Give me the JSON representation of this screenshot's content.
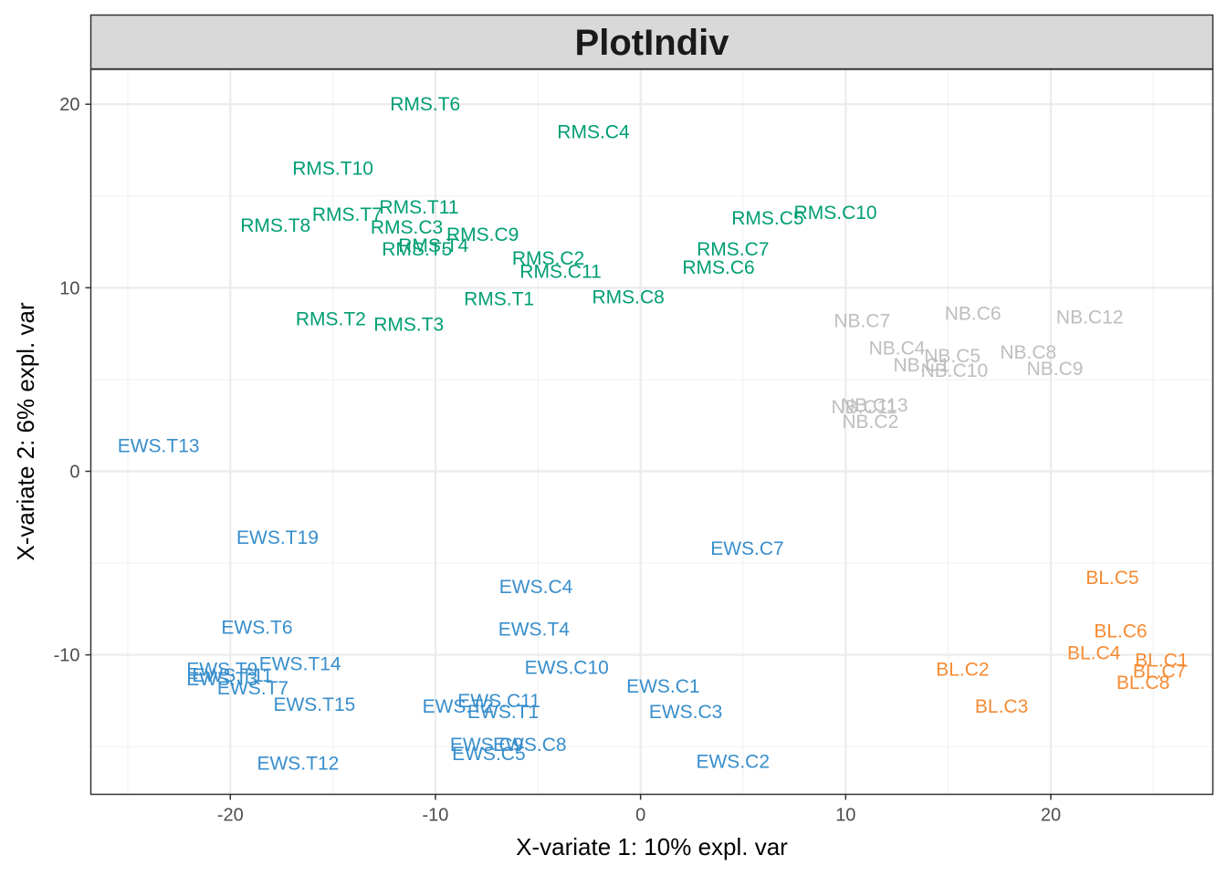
{
  "chart_data": {
    "type": "scatter",
    "title": "PlotIndiv",
    "xlabel": "X-variate 1: 10% expl. var",
    "ylabel": "X-variate 2: 6% expl. var",
    "xlim": [
      -26.8,
      27.9
    ],
    "ylim": [
      -17.6,
      21.9
    ],
    "x_ticks": [
      -20,
      -10,
      0,
      10,
      20
    ],
    "y_ticks": [
      -10,
      0,
      10,
      20
    ],
    "x_tick_labels": [
      "-20",
      "-10",
      "0",
      "10",
      "20"
    ],
    "y_tick_labels": [
      "-10",
      "0",
      "10",
      "20"
    ],
    "grid": true,
    "legend": "none",
    "colors": {
      "RMS": "#009E73",
      "NB": "#BEBEBE",
      "EWS": "#388ECC",
      "BL": "#F68B33"
    },
    "series": [
      {
        "group": "RMS",
        "points": [
          {
            "label": "RMS.T6",
            "x": -10.5,
            "y": 20.0
          },
          {
            "label": "RMS.C4",
            "x": -2.3,
            "y": 18.5
          },
          {
            "label": "RMS.T10",
            "x": -15.0,
            "y": 16.5
          },
          {
            "label": "RMS.T11",
            "x": -10.8,
            "y": 14.4
          },
          {
            "label": "RMS.T7",
            "x": -14.3,
            "y": 14.0
          },
          {
            "label": "RMS.C5",
            "x": 6.2,
            "y": 13.8
          },
          {
            "label": "RMS.C10",
            "x": 9.5,
            "y": 14.1
          },
          {
            "label": "RMS.T8",
            "x": -17.8,
            "y": 13.4
          },
          {
            "label": "RMS.C3",
            "x": -11.4,
            "y": 13.3
          },
          {
            "label": "RMS.C9",
            "x": -7.7,
            "y": 12.9
          },
          {
            "label": "RMS.T4",
            "x": -10.1,
            "y": 12.3
          },
          {
            "label": "RMS.T5",
            "x": -10.9,
            "y": 12.1
          },
          {
            "label": "RMS.C7",
            "x": 4.5,
            "y": 12.1
          },
          {
            "label": "RMS.C2",
            "x": -4.5,
            "y": 11.6
          },
          {
            "label": "RMS.C11",
            "x": -3.9,
            "y": 10.9
          },
          {
            "label": "RMS.C6",
            "x": 3.8,
            "y": 11.1
          },
          {
            "label": "RMS.T1",
            "x": -6.9,
            "y": 9.4
          },
          {
            "label": "RMS.C8",
            "x": -0.6,
            "y": 9.5
          },
          {
            "label": "RMS.T2",
            "x": -15.1,
            "y": 8.3
          },
          {
            "label": "RMS.T3",
            "x": -11.3,
            "y": 8.0
          }
        ]
      },
      {
        "group": "NB",
        "points": [
          {
            "label": "NB.C7",
            "x": 10.8,
            "y": 8.2
          },
          {
            "label": "NB.C6",
            "x": 16.2,
            "y": 8.6
          },
          {
            "label": "NB.C12",
            "x": 21.9,
            "y": 8.4
          },
          {
            "label": "NB.C4",
            "x": 12.5,
            "y": 6.7
          },
          {
            "label": "NB.C5",
            "x": 15.2,
            "y": 6.3
          },
          {
            "label": "NB.C8",
            "x": 18.9,
            "y": 6.5
          },
          {
            "label": "NB.C1",
            "x": 13.7,
            "y": 5.8
          },
          {
            "label": "NB.C10",
            "x": 15.3,
            "y": 5.5
          },
          {
            "label": "NB.C9",
            "x": 20.2,
            "y": 5.6
          },
          {
            "label": "NB.C11",
            "x": 10.9,
            "y": 3.5
          },
          {
            "label": "NB.C13",
            "x": 11.4,
            "y": 3.6
          },
          {
            "label": "NB.C2",
            "x": 11.2,
            "y": 2.7
          }
        ]
      },
      {
        "group": "EWS",
        "points": [
          {
            "label": "EWS.T13",
            "x": -23.5,
            "y": 1.4
          },
          {
            "label": "EWS.T19",
            "x": -17.7,
            "y": -3.6
          },
          {
            "label": "EWS.C7",
            "x": 5.2,
            "y": -4.2
          },
          {
            "label": "EWS.C4",
            "x": -5.1,
            "y": -6.3
          },
          {
            "label": "EWS.T6",
            "x": -18.7,
            "y": -8.5
          },
          {
            "label": "EWS.T4",
            "x": -5.2,
            "y": -8.6
          },
          {
            "label": "EWS.T14",
            "x": -16.6,
            "y": -10.5
          },
          {
            "label": "EWS.T9",
            "x": -20.4,
            "y": -10.8
          },
          {
            "label": "EWS.C10",
            "x": -3.6,
            "y": -10.7
          },
          {
            "label": "EWS.T11",
            "x": -19.9,
            "y": -11.1
          },
          {
            "label": "EWS.T3",
            "x": -20.4,
            "y": -11.3
          },
          {
            "label": "EWS.C1",
            "x": 1.1,
            "y": -11.7
          },
          {
            "label": "EWS.T7",
            "x": -18.9,
            "y": -11.8
          },
          {
            "label": "EWS.C11",
            "x": -6.9,
            "y": -12.5
          },
          {
            "label": "EWS.T2",
            "x": -8.9,
            "y": -12.8
          },
          {
            "label": "EWS.T1",
            "x": -6.7,
            "y": -13.1
          },
          {
            "label": "EWS.C3",
            "x": 2.2,
            "y": -13.1
          },
          {
            "label": "EWS.T15",
            "x": -15.9,
            "y": -12.7
          },
          {
            "label": "EWS.C9",
            "x": -7.5,
            "y": -14.9
          },
          {
            "label": "EWS.C8",
            "x": -5.4,
            "y": -14.9
          },
          {
            "label": "EWS.C5",
            "x": -7.4,
            "y": -15.4
          },
          {
            "label": "EWS.T12",
            "x": -16.7,
            "y": -15.9
          },
          {
            "label": "EWS.C2",
            "x": 4.5,
            "y": -15.8
          }
        ]
      },
      {
        "group": "BL",
        "points": [
          {
            "label": "BL.C5",
            "x": 23.0,
            "y": -5.8
          },
          {
            "label": "BL.C6",
            "x": 23.4,
            "y": -8.7
          },
          {
            "label": "BL.C4",
            "x": 22.1,
            "y": -9.9
          },
          {
            "label": "BL.C1",
            "x": 25.4,
            "y": -10.3
          },
          {
            "label": "BL.C7",
            "x": 25.3,
            "y": -10.9
          },
          {
            "label": "BL.C2",
            "x": 15.7,
            "y": -10.8
          },
          {
            "label": "BL.C8",
            "x": 24.5,
            "y": -11.5
          },
          {
            "label": "BL.C3",
            "x": 17.6,
            "y": -12.8
          }
        ]
      }
    ]
  }
}
